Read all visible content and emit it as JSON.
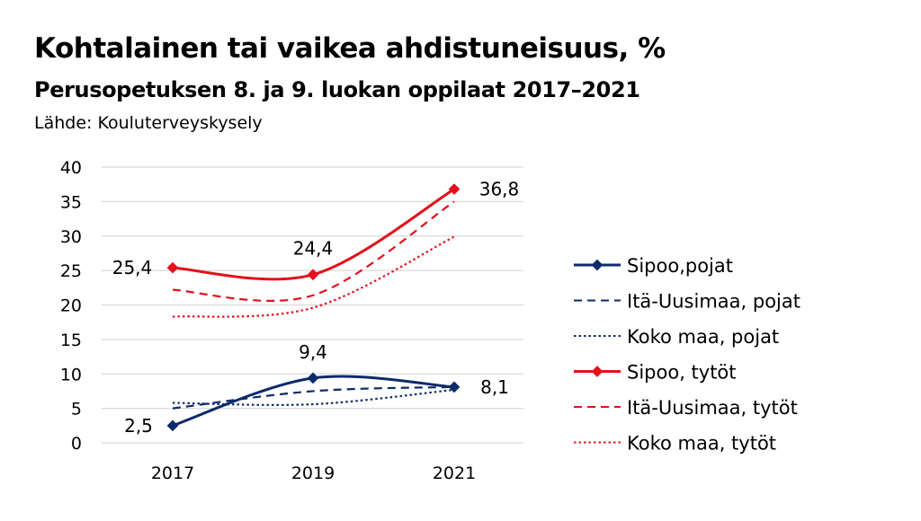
{
  "chart_data": {
    "type": "line",
    "title": "Kohtalainen tai vaikea ahdistuneisuus, %",
    "subtitle": "Perusopetuksen 8. ja 9. luokan oppilaat 2017–2021",
    "source": "Lähde: Kouluterveyskysely",
    "categories": [
      "2017",
      "2019",
      "2021"
    ],
    "ylim": [
      0,
      40
    ],
    "yticks": [
      "0",
      "5",
      "10",
      "15",
      "20",
      "25",
      "30",
      "35",
      "40"
    ],
    "grid": true,
    "legend": "right",
    "series": [
      {
        "name": "Sipoo,pojat",
        "values": [
          2.5,
          9.4,
          8.1
        ],
        "labels": [
          "2,5",
          "9,4",
          "8,1"
        ],
        "color": "#0d2a6b",
        "style": "solid",
        "marker": true
      },
      {
        "name": "Itä-Uusimaa, pojat",
        "values": [
          5.0,
          7.5,
          8.1
        ],
        "color": "#0d2a6b",
        "style": "dashed"
      },
      {
        "name": "Koko maa, pojat",
        "values": [
          5.8,
          5.6,
          7.7
        ],
        "color": "#0d2a6b",
        "style": "dotted"
      },
      {
        "name": "Sipoo, tytöt",
        "values": [
          25.4,
          24.4,
          36.8
        ],
        "labels": [
          "25,4",
          "24,4",
          "36,8"
        ],
        "color": "#e3111b",
        "style": "solid",
        "marker": true
      },
      {
        "name": "Itä-Uusimaa, tytöt",
        "values": [
          22.2,
          21.4,
          35.0
        ],
        "color": "#e3111b",
        "style": "dashed"
      },
      {
        "name": "Koko maa, tytöt",
        "values": [
          18.3,
          19.6,
          29.9
        ],
        "color": "#e3111b",
        "style": "dotted"
      }
    ]
  }
}
